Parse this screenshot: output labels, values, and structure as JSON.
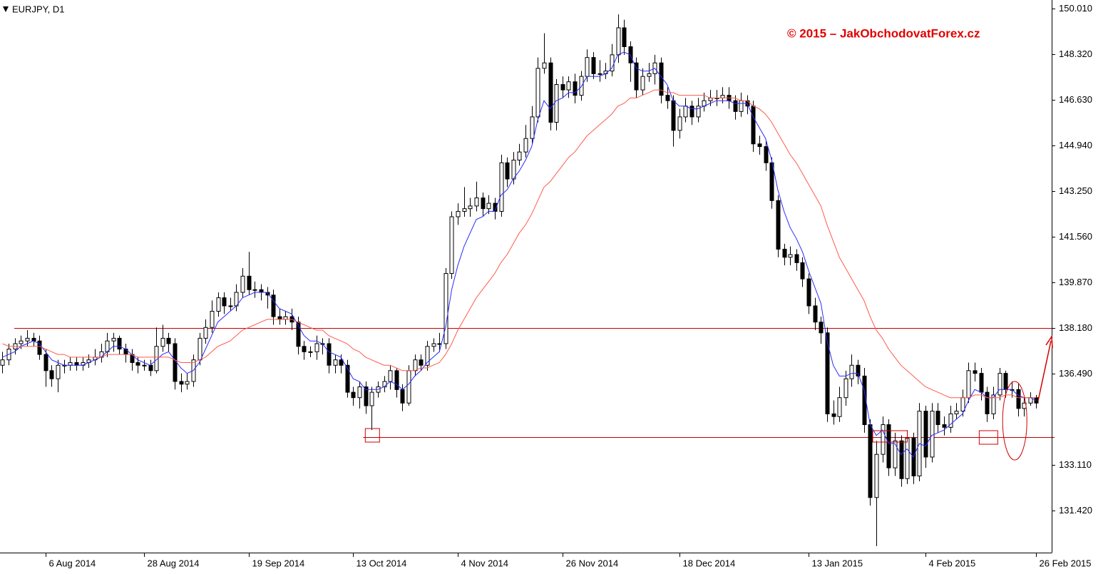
{
  "chart_data": {
    "type": "candlestick",
    "title": "EURJPY, D1",
    "annotation": "© 2015 – JakObchodovatForex.cz",
    "xlim": [
      -0.4,
      170.5
    ],
    "ylim": [
      129.86,
      150.33
    ],
    "up_color": "#ffffff",
    "down_color": "#000000",
    "open": [
      136.8,
      137.0,
      137.4,
      137.6,
      137.7,
      137.8,
      137.7,
      137.2,
      136.6,
      136.3,
      136.8,
      136.8,
      136.9,
      136.8,
      136.9,
      137.0,
      137.1,
      137.3,
      137.7,
      137.8,
      137.4,
      137.2,
      136.9,
      136.8,
      136.8,
      136.6,
      137.5,
      137.8,
      137.6,
      136.2,
      136.1,
      136.2,
      137.0,
      137.8,
      138.2,
      138.8,
      139.3,
      139.0,
      139.0,
      139.5,
      140.1,
      139.6,
      139.6,
      139.5,
      139.4,
      138.6,
      138.5,
      138.6,
      138.4,
      137.5,
      137.3,
      137.3,
      137.6,
      137.6,
      136.8,
      137.0,
      136.8,
      135.8,
      135.6,
      136.0,
      135.3,
      135.8,
      136.0,
      136.2,
      136.6,
      135.9,
      135.4,
      136.6,
      137.0,
      136.8,
      137.5,
      137.6,
      137.6,
      140.2,
      142.3,
      142.5,
      142.6,
      142.7,
      143.0,
      142.6,
      142.8,
      142.5,
      144.3,
      143.7,
      144.4,
      144.7,
      145.2,
      146.0,
      147.8,
      148.0,
      145.8,
      147.2,
      147.0,
      147.3,
      146.8,
      147.5,
      148.2,
      147.6,
      147.6,
      147.7,
      148.3,
      149.3,
      148.6,
      148.0,
      147.0,
      147.5,
      147.6,
      148.0,
      146.8,
      146.6,
      145.5,
      146.0,
      146.4,
      146.0,
      146.4,
      146.6,
      146.7,
      146.7,
      146.8,
      146.6,
      146.2,
      146.6,
      146.4,
      145.0,
      144.9,
      144.3,
      142.9,
      141.1,
      140.8,
      140.9,
      140.6,
      140.0,
      139.0,
      138.4,
      138.0,
      135.0,
      134.9,
      135.6,
      136.3,
      136.8,
      136.4,
      134.6,
      131.9,
      133.5,
      134.6,
      133.0,
      134.0,
      132.6,
      134.1,
      132.7,
      135.1,
      133.4,
      135.1,
      134.6,
      134.5,
      135.0,
      135.1,
      135.6,
      136.6,
      136.5,
      135.8,
      135.0,
      135.7,
      136.5,
      135.9,
      135.9,
      135.2,
      135.4,
      135.6
    ],
    "high": [
      137.3,
      137.6,
      137.8,
      137.9,
      138.1,
      138.0,
      137.9,
      137.4,
      136.8,
      137.0,
      137.0,
      137.1,
      137.1,
      137.1,
      137.2,
      137.4,
      137.6,
      138.0,
      138.0,
      137.9,
      137.6,
      137.4,
      137.1,
      137.0,
      137.0,
      138.2,
      138.3,
      138.0,
      137.8,
      136.5,
      136.5,
      137.2,
      138.0,
      138.5,
      139.2,
      139.5,
      139.5,
      139.3,
      139.8,
      140.4,
      141.0,
      139.9,
      139.8,
      139.7,
      139.6,
      138.9,
      138.8,
      138.9,
      138.6,
      137.7,
      137.5,
      137.9,
      137.8,
      137.8,
      137.2,
      137.2,
      137.0,
      136.0,
      136.2,
      136.2,
      136.0,
      136.2,
      136.4,
      136.8,
      136.7,
      136.1,
      136.8,
      137.2,
      137.2,
      137.7,
      137.8,
      138.0,
      140.4,
      142.5,
      142.8,
      143.4,
      143.0,
      143.6,
      143.2,
      143.1,
      143.0,
      144.6,
      144.5,
      144.7,
      145.0,
      145.7,
      146.4,
      148.2,
      149.1,
      148.2,
      147.4,
      147.5,
      147.5,
      147.6,
      147.7,
      148.5,
      148.4,
      148.1,
      148.0,
      148.7,
      149.8,
      149.6,
      148.8,
      148.2,
      147.8,
      148.0,
      148.3,
      148.2,
      147.1,
      146.8,
      146.3,
      146.7,
      146.6,
      146.7,
      146.9,
      147.0,
      147.0,
      147.1,
      147.1,
      146.8,
      146.9,
      146.8,
      146.6,
      145.3,
      145.1,
      144.5,
      143.1,
      141.3,
      141.2,
      141.1,
      140.8,
      140.2,
      139.3,
      138.6,
      138.2,
      135.5,
      136.0,
      136.6,
      137.2,
      137.0,
      136.7,
      134.8,
      134.0,
      134.9,
      134.8,
      134.3,
      134.2,
      134.4,
      134.3,
      135.4,
      135.3,
      135.4,
      135.4,
      134.9,
      135.3,
      135.4,
      135.9,
      136.9,
      136.9,
      136.7,
      136.0,
      136.0,
      136.7,
      136.6,
      136.2,
      136.1,
      135.6,
      135.8,
      135.7
    ],
    "low": [
      136.5,
      136.8,
      137.2,
      137.4,
      137.5,
      137.5,
      137.0,
      136.0,
      136.0,
      135.8,
      136.5,
      136.6,
      136.6,
      136.6,
      136.7,
      136.8,
      136.9,
      137.1,
      137.3,
      137.2,
      136.9,
      136.6,
      136.5,
      136.6,
      136.4,
      136.5,
      137.3,
      137.3,
      135.9,
      135.8,
      135.9,
      136.0,
      136.8,
      137.6,
      138.0,
      138.6,
      138.7,
      138.8,
      138.8,
      139.3,
      139.4,
      139.3,
      139.2,
      138.9,
      138.3,
      138.3,
      138.3,
      138.1,
      137.2,
      137.0,
      137.1,
      137.0,
      137.2,
      136.5,
      136.5,
      136.5,
      135.6,
      135.3,
      135.2,
      135.0,
      134.4,
      135.6,
      135.8,
      135.9,
      135.6,
      135.1,
      135.3,
      136.4,
      136.6,
      136.6,
      137.3,
      137.3,
      137.4,
      140.0,
      142.0,
      142.3,
      142.3,
      142.5,
      142.3,
      142.4,
      142.2,
      142.3,
      143.4,
      143.5,
      144.2,
      144.5,
      145.0,
      145.8,
      147.6,
      145.5,
      145.5,
      146.7,
      146.7,
      146.5,
      146.6,
      147.3,
      147.4,
      147.3,
      147.4,
      147.5,
      148.0,
      148.3,
      147.3,
      146.7,
      146.8,
      147.3,
      147.2,
      146.5,
      146.3,
      144.9,
      145.2,
      145.8,
      145.7,
      145.8,
      146.2,
      146.4,
      146.4,
      146.5,
      146.3,
      145.9,
      146.0,
      146.1,
      144.7,
      144.6,
      144.0,
      142.6,
      140.8,
      140.5,
      140.5,
      140.3,
      139.7,
      138.7,
      138.1,
      137.6,
      134.7,
      134.6,
      134.7,
      135.3,
      136.0,
      136.1,
      134.3,
      131.6,
      130.1,
      133.2,
      132.7,
      132.7,
      132.3,
      132.4,
      132.4,
      132.5,
      133.0,
      133.2,
      134.3,
      134.2,
      134.3,
      134.8,
      134.9,
      135.4,
      136.2,
      135.5,
      134.7,
      134.8,
      135.5,
      135.6,
      135.6,
      134.9,
      134.9,
      135.3,
      135.2
    ],
    "close": [
      137.0,
      137.4,
      137.6,
      137.7,
      137.8,
      137.7,
      137.2,
      136.6,
      136.3,
      136.8,
      136.8,
      136.9,
      136.8,
      136.9,
      137.0,
      137.1,
      137.3,
      137.7,
      137.8,
      137.4,
      137.2,
      136.9,
      136.8,
      136.8,
      136.6,
      137.5,
      137.8,
      137.6,
      136.2,
      136.1,
      136.2,
      137.0,
      137.8,
      138.2,
      138.8,
      139.3,
      139.0,
      139.0,
      139.5,
      140.1,
      139.6,
      139.6,
      139.5,
      139.4,
      138.6,
      138.5,
      138.6,
      138.4,
      137.5,
      137.3,
      137.3,
      137.6,
      137.6,
      136.8,
      137.0,
      136.8,
      135.8,
      135.6,
      136.0,
      135.3,
      135.8,
      136.0,
      136.2,
      136.6,
      135.9,
      135.4,
      136.6,
      137.0,
      136.8,
      137.5,
      137.6,
      137.6,
      140.2,
      142.3,
      142.5,
      142.6,
      142.7,
      143.0,
      142.6,
      142.8,
      142.5,
      144.3,
      143.7,
      144.4,
      144.7,
      145.2,
      146.0,
      147.8,
      148.0,
      145.8,
      147.2,
      147.0,
      147.3,
      146.8,
      147.5,
      148.2,
      147.6,
      147.6,
      147.7,
      148.3,
      149.3,
      148.6,
      148.0,
      147.0,
      147.5,
      147.6,
      148.0,
      146.8,
      146.6,
      145.5,
      146.0,
      146.4,
      146.0,
      146.4,
      146.6,
      146.7,
      146.7,
      146.8,
      146.6,
      146.2,
      146.6,
      146.4,
      145.0,
      144.9,
      144.3,
      142.9,
      141.1,
      140.8,
      140.9,
      140.6,
      140.0,
      139.0,
      138.4,
      138.0,
      135.0,
      134.9,
      135.6,
      136.3,
      136.8,
      136.4,
      134.6,
      131.9,
      133.5,
      134.6,
      133.0,
      134.0,
      132.6,
      134.1,
      132.7,
      135.1,
      133.4,
      135.1,
      134.6,
      134.5,
      135.0,
      135.1,
      135.6,
      136.6,
      136.5,
      135.8,
      135.0,
      135.7,
      136.5,
      135.9,
      135.9,
      135.2,
      135.4,
      135.6,
      135.4
    ],
    "lines": [
      {
        "color": "#2a2aff",
        "values": [
          137.1,
          137.2,
          137.3,
          137.5,
          137.6,
          137.7,
          137.6,
          137.3,
          137.0,
          136.9,
          136.8,
          136.8,
          136.8,
          136.8,
          136.9,
          137.0,
          137.1,
          137.3,
          137.5,
          137.5,
          137.4,
          137.2,
          137.0,
          136.9,
          136.8,
          137.0,
          137.2,
          137.3,
          137.0,
          136.7,
          136.5,
          136.6,
          136.9,
          137.4,
          137.9,
          138.4,
          138.6,
          138.8,
          139.0,
          139.3,
          139.4,
          139.5,
          139.5,
          139.5,
          139.2,
          138.9,
          138.8,
          138.7,
          138.3,
          137.9,
          137.7,
          137.7,
          137.6,
          137.3,
          137.2,
          137.1,
          136.7,
          136.3,
          136.2,
          135.9,
          135.9,
          135.9,
          136.0,
          136.2,
          136.1,
          135.9,
          136.1,
          136.4,
          136.6,
          136.9,
          137.1,
          137.3,
          138.2,
          139.6,
          140.5,
          141.2,
          141.7,
          142.2,
          142.3,
          142.5,
          142.5,
          143.1,
          143.3,
          143.7,
          144.0,
          144.4,
          144.9,
          145.9,
          146.6,
          146.3,
          146.6,
          146.7,
          146.9,
          146.9,
          147.1,
          147.5,
          147.5,
          147.5,
          147.6,
          147.8,
          148.3,
          148.4,
          148.3,
          147.8,
          147.7,
          147.7,
          147.8,
          147.5,
          147.2,
          146.6,
          146.4,
          146.4,
          146.3,
          146.3,
          146.4,
          146.5,
          146.6,
          146.6,
          146.6,
          146.5,
          146.5,
          146.5,
          146.0,
          145.6,
          145.2,
          144.4,
          143.3,
          142.5,
          141.9,
          141.5,
          141.0,
          140.3,
          139.7,
          139.1,
          137.7,
          136.8,
          136.4,
          136.4,
          136.5,
          136.5,
          135.9,
          134.6,
          134.2,
          134.4,
          133.9,
          133.9,
          133.5,
          133.7,
          133.4,
          133.9,
          133.8,
          134.2,
          134.3,
          134.4,
          134.6,
          134.8,
          135.0,
          135.5,
          135.9,
          135.8,
          135.6,
          135.6,
          135.9,
          135.9,
          135.9,
          135.7,
          135.6,
          135.6,
          135.5
        ]
      },
      {
        "color": "#ff5a4a",
        "values": [
          137.6,
          137.5,
          137.5,
          137.5,
          137.5,
          137.5,
          137.5,
          137.4,
          137.3,
          137.2,
          137.2,
          137.1,
          137.1,
          137.1,
          137.1,
          137.1,
          137.1,
          137.2,
          137.2,
          137.2,
          137.2,
          137.2,
          137.1,
          137.1,
          137.1,
          137.1,
          137.1,
          137.1,
          137.0,
          136.9,
          136.9,
          136.9,
          137.0,
          137.1,
          137.3,
          137.5,
          137.6,
          137.7,
          137.9,
          138.1,
          138.2,
          138.3,
          138.4,
          138.5,
          138.5,
          138.5,
          138.5,
          138.5,
          138.4,
          138.3,
          138.2,
          138.1,
          138.1,
          137.9,
          137.8,
          137.7,
          137.6,
          137.4,
          137.3,
          137.1,
          137.0,
          136.9,
          136.8,
          136.8,
          136.7,
          136.6,
          136.6,
          136.6,
          136.7,
          136.7,
          136.8,
          136.9,
          137.2,
          137.6,
          138.1,
          138.5,
          138.9,
          139.3,
          139.6,
          139.9,
          140.2,
          140.6,
          140.9,
          141.3,
          141.7,
          142.0,
          142.4,
          142.9,
          143.4,
          143.6,
          143.9,
          144.2,
          144.5,
          144.7,
          145.0,
          145.3,
          145.5,
          145.7,
          145.9,
          146.1,
          146.4,
          146.5,
          146.7,
          146.7,
          146.8,
          146.9,
          147.0,
          147.0,
          146.9,
          146.9,
          146.8,
          146.8,
          146.8,
          146.8,
          146.8,
          146.7,
          146.7,
          146.7,
          146.7,
          146.7,
          146.6,
          146.6,
          146.4,
          146.3,
          146.1,
          145.8,
          145.4,
          145.0,
          144.6,
          144.3,
          143.9,
          143.5,
          143.1,
          142.7,
          142.0,
          141.4,
          140.8,
          140.4,
          140.0,
          139.6,
          139.2,
          138.6,
          138.1,
          137.8,
          137.4,
          137.1,
          136.8,
          136.6,
          136.4,
          136.2,
          136.0,
          135.9,
          135.8,
          135.7,
          135.6,
          135.6,
          135.6,
          135.6,
          135.7,
          135.7,
          135.6,
          135.6,
          135.6,
          135.7,
          135.7,
          135.6,
          135.6,
          135.6,
          135.6
        ]
      }
    ],
    "levels": [
      {
        "value": 138.18,
        "color": "#c00000"
      },
      {
        "value": 134.14,
        "color": "#c00000"
      }
    ],
    "xticks": [
      {
        "value": 7,
        "label": "6 Aug 2014"
      },
      {
        "value": 23,
        "label": "28 Aug 2014"
      },
      {
        "value": 40,
        "label": "19 Sep 2014"
      },
      {
        "value": 57,
        "label": "13 Oct 2014"
      },
      {
        "value": 74,
        "label": "4 Nov 2014"
      },
      {
        "value": 91,
        "label": "26 Nov 2014"
      },
      {
        "value": 110,
        "label": "18 Dec 2014"
      },
      {
        "value": 131,
        "label": "13 Jan 2015"
      },
      {
        "value": 150,
        "label": "4 Feb 2015"
      },
      {
        "value": 168,
        "label": "26 Feb 2015"
      }
    ],
    "yticks": [
      {
        "value": 131.42,
        "label": "131.420"
      },
      {
        "value": 133.11,
        "label": "133.110"
      },
      {
        "value": 136.49,
        "label": "136.490"
      },
      {
        "value": 138.18,
        "label": "138.180"
      },
      {
        "value": 139.87,
        "label": "139.870"
      },
      {
        "value": 141.56,
        "label": "141.560"
      },
      {
        "value": 143.25,
        "label": "143.250"
      },
      {
        "value": 144.94,
        "label": "144.940"
      },
      {
        "value": 146.63,
        "label": "146.630"
      },
      {
        "value": 148.32,
        "label": "148.320"
      },
      {
        "value": 150.01,
        "label": "150.010"
      }
    ]
  }
}
